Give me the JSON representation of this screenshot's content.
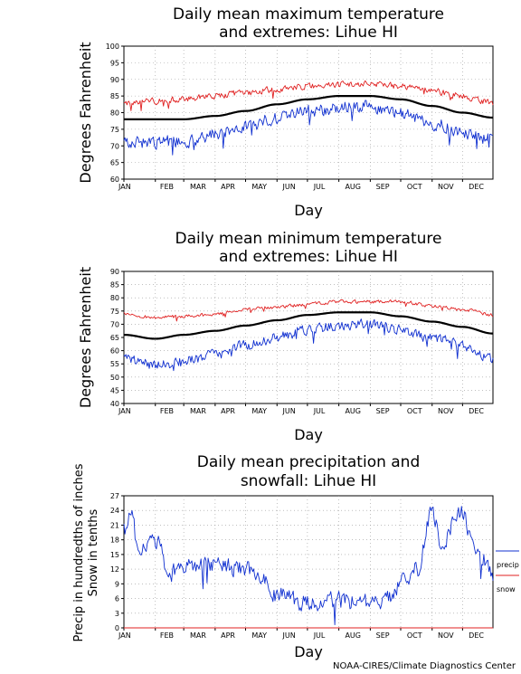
{
  "footer": {
    "credit": "NOAA-CIRES/Climate Diagnostics Center"
  },
  "chart_data": [
    {
      "type": "line",
      "title_lines": [
        "Daily mean maximum temperature",
        "and extremes: Lihue HI"
      ],
      "xlabel": "Day",
      "ylabel": "Degrees Fahrenheit",
      "ylim": [
        60,
        100
      ],
      "yticks": [
        60,
        65,
        70,
        75,
        80,
        85,
        90,
        95,
        100
      ],
      "month_labels": [
        "JAN",
        "FEB",
        "MAR",
        "APR",
        "MAY",
        "JUN",
        "JUL",
        "AUG",
        "SEP",
        "OCT",
        "NOV",
        "DEC"
      ],
      "grid": true,
      "x_unit": "day of year",
      "series": [
        {
          "color": "#e02020",
          "style": "noisy",
          "noise": 0.9,
          "x": [
            1,
            32,
            60,
            91,
            121,
            152,
            182,
            213,
            244,
            274,
            305,
            335,
            365
          ],
          "values": [
            82.5,
            83.5,
            84,
            85,
            86,
            87,
            88,
            88.5,
            88.5,
            88,
            86.5,
            85,
            83
          ]
        },
        {
          "color": "#000000",
          "style": "smooth",
          "x": [
            1,
            32,
            60,
            91,
            121,
            152,
            182,
            213,
            244,
            274,
            305,
            335,
            365
          ],
          "values": [
            78,
            78,
            78,
            79,
            80.5,
            82.5,
            84,
            85,
            85,
            84,
            82,
            80,
            78.5
          ]
        },
        {
          "color": "#1030d0",
          "style": "noisy",
          "noise": 1.8,
          "x": [
            1,
            32,
            60,
            91,
            121,
            152,
            182,
            213,
            244,
            274,
            305,
            335,
            365
          ],
          "values": [
            70.5,
            71,
            71.5,
            73.5,
            75.5,
            78.5,
            80.5,
            81.5,
            82,
            80,
            77,
            74,
            72
          ]
        }
      ]
    },
    {
      "type": "line",
      "title_lines": [
        "Daily mean minimum temperature",
        "and extremes: Lihue HI"
      ],
      "xlabel": "Day",
      "ylabel": "Degrees Fahrenheit",
      "ylim": [
        40,
        90
      ],
      "yticks": [
        40,
        45,
        50,
        55,
        60,
        65,
        70,
        75,
        80,
        85,
        90
      ],
      "month_labels": [
        "JAN",
        "FEB",
        "MAR",
        "APR",
        "MAY",
        "JUN",
        "JUL",
        "AUG",
        "SEP",
        "OCT",
        "NOV",
        "DEC"
      ],
      "grid": true,
      "x_unit": "day of year",
      "series": [
        {
          "color": "#e02020",
          "style": "noisy",
          "noise": 0.6,
          "x": [
            1,
            32,
            60,
            91,
            121,
            152,
            182,
            213,
            244,
            274,
            305,
            335,
            365
          ],
          "values": [
            74,
            72.5,
            73,
            74,
            75.5,
            76.5,
            77.5,
            78.5,
            78.5,
            78.5,
            77,
            75.5,
            73.5
          ]
        },
        {
          "color": "#000000",
          "style": "smooth",
          "x": [
            1,
            32,
            60,
            91,
            121,
            152,
            182,
            213,
            244,
            274,
            305,
            335,
            365
          ],
          "values": [
            66,
            64.5,
            66,
            67.5,
            69.5,
            71.5,
            73.5,
            74.5,
            74.5,
            73,
            71,
            69,
            66.5
          ]
        },
        {
          "color": "#1030d0",
          "style": "noisy",
          "noise": 1.8,
          "x": [
            1,
            32,
            60,
            91,
            121,
            152,
            182,
            213,
            244,
            274,
            305,
            335,
            365
          ],
          "values": [
            57,
            54.5,
            56,
            58.5,
            62,
            65,
            68,
            69.5,
            70,
            68,
            65,
            62,
            57
          ]
        }
      ]
    },
    {
      "type": "line",
      "title_lines": [
        "Daily mean precipitation and",
        "snowfall: Lihue HI"
      ],
      "xlabel": "Day",
      "ylabel_lines": [
        "Precip in hundredths of inches",
        "Snow in tenths"
      ],
      "ylim": [
        0,
        27
      ],
      "yticks": [
        0,
        3,
        6,
        9,
        12,
        15,
        18,
        21,
        24,
        27
      ],
      "month_labels": [
        "JAN",
        "FEB",
        "MAR",
        "APR",
        "MAY",
        "JUN",
        "JUL",
        "AUG",
        "SEP",
        "OCT",
        "NOV",
        "DEC"
      ],
      "grid": true,
      "x_unit": "day of year",
      "legend": {
        "placement": "right",
        "entries": [
          {
            "label": "precip",
            "color": "#1030d0"
          },
          {
            "label": "snow",
            "color": "#e02020"
          }
        ]
      },
      "series": [
        {
          "name": "precip",
          "color": "#1030d0",
          "style": "noisy",
          "noise": 1.6,
          "x": [
            1,
            8,
            15,
            32,
            46,
            60,
            91,
            121,
            140,
            152,
            182,
            213,
            244,
            260,
            274,
            290,
            305,
            315,
            325,
            335,
            345,
            358,
            365
          ],
          "values": [
            20,
            24,
            16,
            18,
            11,
            12.5,
            13,
            12,
            10,
            6.5,
            5,
            5.5,
            5,
            6,
            9,
            12,
            24,
            17,
            21,
            24,
            17,
            14,
            11
          ]
        },
        {
          "name": "snow",
          "color": "#e02020",
          "style": "smooth",
          "x": [
            1,
            365
          ],
          "values": [
            0,
            0
          ]
        }
      ]
    }
  ]
}
